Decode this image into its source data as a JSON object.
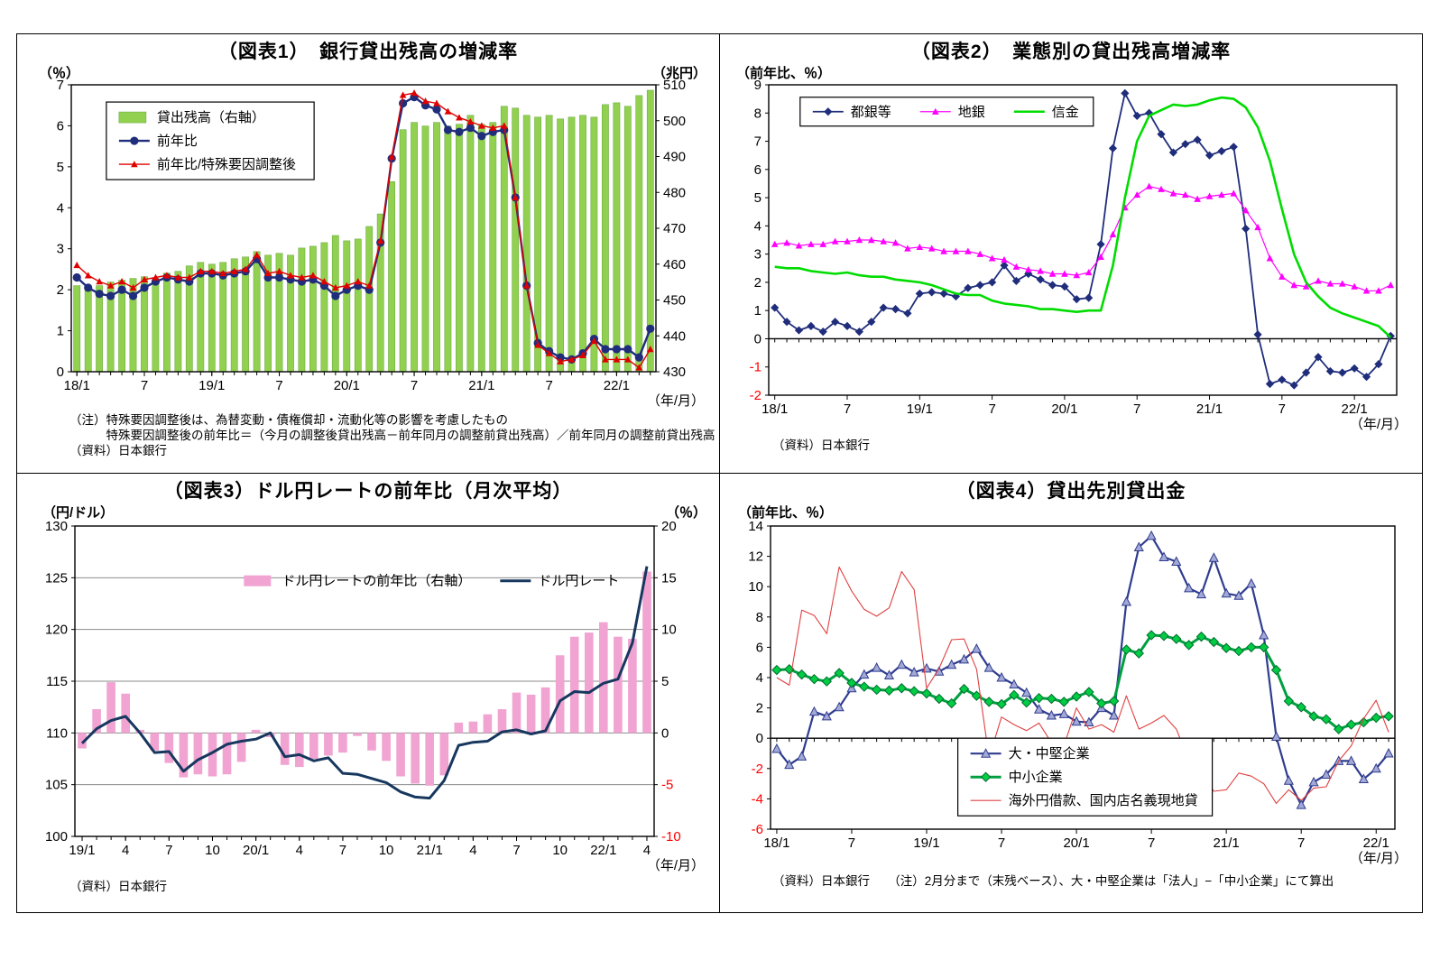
{
  "chart_data": [
    {
      "id": "chart1",
      "type": "bar+line",
      "title": "（図表1）　銀行貸出残高の増減率",
      "left_axis": {
        "label": "（％）",
        "min": 0,
        "max": 7,
        "step": 1
      },
      "right_axis": {
        "label": "（兆円）",
        "min": 430,
        "max": 510,
        "step": 10
      },
      "x_axis": {
        "label": "（年/月）",
        "months": 52,
        "ticks_at_zero": false,
        "tick_positions": [
          0,
          6,
          12,
          18,
          24,
          30,
          36,
          42,
          48
        ],
        "tick_labels": [
          "18/1",
          "7",
          "19/1",
          "7",
          "20/1",
          "7",
          "21/1",
          "7",
          "22/1"
        ]
      },
      "grid_y": false,
      "zero_line": false,
      "legend": {
        "orient": "v",
        "x": 0.06,
        "y": 0.06,
        "box": true,
        "items": [
          {
            "label": "貸出残高（右軸）",
            "series": 0
          },
          {
            "label": "前年比",
            "series": 1
          },
          {
            "label": "前年比/特殊要因調整後",
            "series": 2
          }
        ]
      },
      "series": [
        {
          "name": "貸出残高（右軸）",
          "type": "bar",
          "axis": "right",
          "color": "#92D050",
          "stroke": "#6FAE47",
          "bar_width": 0.58,
          "values": [
            454,
            453.5,
            454,
            455,
            455.5,
            456,
            456.5,
            456,
            457.5,
            458,
            459.5,
            460.5,
            460,
            460.5,
            461.5,
            462,
            463.5,
            462.5,
            463,
            462.5,
            464.5,
            465,
            466,
            468,
            466.5,
            467,
            470.5,
            474,
            483,
            497.5,
            499.5,
            498.5,
            499.5,
            498.5,
            499,
            501.5,
            499,
            499.5,
            504,
            503.5,
            501.5,
            501,
            501.5,
            500.5,
            501,
            501.5,
            501,
            504.5,
            505,
            504,
            507,
            508.5
          ]
        },
        {
          "name": "前年比",
          "type": "line",
          "axis": "left",
          "color": "#1F2D7B",
          "width": 2.4,
          "marker": "circle",
          "marker_size": 4.6,
          "values": [
            2.3,
            2.05,
            1.9,
            1.85,
            2.0,
            1.85,
            2.05,
            2.2,
            2.3,
            2.25,
            2.2,
            2.4,
            2.4,
            2.35,
            2.4,
            2.45,
            2.75,
            2.3,
            2.3,
            2.25,
            2.2,
            2.25,
            2.1,
            1.85,
            2.0,
            2.1,
            2.0,
            3.15,
            5.2,
            6.55,
            6.7,
            6.5,
            6.4,
            5.9,
            5.85,
            5.95,
            5.75,
            5.85,
            5.9,
            4.25,
            2.1,
            0.7,
            0.5,
            0.35,
            0.3,
            0.45,
            0.8,
            0.55,
            0.55,
            0.55,
            0.35,
            1.05
          ]
        },
        {
          "name": "前年比/特殊要因調整後",
          "type": "line",
          "axis": "left",
          "color": "#E00000",
          "width": 1.4,
          "marker": "triangle",
          "marker_size": 4,
          "values": [
            2.6,
            2.35,
            2.2,
            2.1,
            2.2,
            2.05,
            2.25,
            2.3,
            2.35,
            2.3,
            2.3,
            2.45,
            2.45,
            2.4,
            2.45,
            2.5,
            2.85,
            2.4,
            2.45,
            2.35,
            2.3,
            2.35,
            2.2,
            2.05,
            2.1,
            2.2,
            2.1,
            3.2,
            5.25,
            6.75,
            6.8,
            6.6,
            6.55,
            6.35,
            6.2,
            6.1,
            6.0,
            5.95,
            6.0,
            4.25,
            2.1,
            0.65,
            0.45,
            0.25,
            0.3,
            0.4,
            0.75,
            0.3,
            0.3,
            0.3,
            0.1,
            0.55
          ]
        }
      ],
      "notes": [
        "（注）特殊要因調整後は、為替変動・債権償却・流動化等の影響を考慮したもの",
        "　　　特殊要因調整後の前年比＝（今月の調整後貸出残高－前年同月の調整前貸出残高）／前年同月の調整前貸出残高",
        "（資料）日本銀行"
      ]
    },
    {
      "id": "chart2",
      "type": "line",
      "title": "（図表2）　業態別の貸出残高増減率",
      "left_axis": {
        "label": "（前年比、％）",
        "min": -2,
        "max": 9,
        "step": 1
      },
      "right_axis": null,
      "x_axis": {
        "label": "（年/月）",
        "months": 52,
        "ticks_at_zero": true,
        "tick_positions": [
          0,
          6,
          12,
          18,
          24,
          30,
          36,
          42,
          48
        ],
        "tick_labels": [
          "18/1",
          "7",
          "19/1",
          "7",
          "20/1",
          "7",
          "21/1",
          "7",
          "22/1"
        ]
      },
      "grid_y": false,
      "zero_line": true,
      "legend": {
        "orient": "h",
        "x": 0.05,
        "y": 0.04,
        "box": true,
        "gap": 30,
        "items": [
          {
            "label": "都銀等",
            "series": 0
          },
          {
            "label": "地銀",
            "series": 1
          },
          {
            "label": "信金",
            "series": 2
          }
        ]
      },
      "series": [
        {
          "name": "都銀等",
          "type": "line",
          "axis": "left",
          "color": "#1F2D7B",
          "width": 1.8,
          "marker": "diamond",
          "marker_size": 4.6,
          "values": [
            1.1,
            0.6,
            0.3,
            0.45,
            0.25,
            0.6,
            0.45,
            0.25,
            0.6,
            1.1,
            1.05,
            0.9,
            1.6,
            1.65,
            1.6,
            1.5,
            1.8,
            1.9,
            2.0,
            2.6,
            2.05,
            2.3,
            2.1,
            1.9,
            1.85,
            1.4,
            1.45,
            3.35,
            6.75,
            8.7,
            7.9,
            8.0,
            7.25,
            6.6,
            6.9,
            7.05,
            6.5,
            6.65,
            6.8,
            3.9,
            0.15,
            -1.6,
            -1.45,
            -1.65,
            -1.2,
            -0.65,
            -1.15,
            -1.2,
            -1.05,
            -1.35,
            -0.9,
            0.1
          ]
        },
        {
          "name": "地銀",
          "type": "line",
          "axis": "left",
          "color": "#FF00FF",
          "width": 1.2,
          "marker": "triangle",
          "marker_size": 4,
          "values": [
            3.35,
            3.4,
            3.3,
            3.35,
            3.35,
            3.45,
            3.45,
            3.5,
            3.5,
            3.45,
            3.4,
            3.2,
            3.25,
            3.2,
            3.1,
            3.1,
            3.1,
            3.0,
            2.85,
            2.8,
            2.55,
            2.45,
            2.4,
            2.3,
            2.3,
            2.25,
            2.35,
            2.9,
            3.7,
            4.65,
            5.1,
            5.4,
            5.3,
            5.15,
            5.1,
            4.95,
            5.05,
            5.1,
            5.15,
            4.55,
            3.95,
            2.85,
            2.2,
            1.9,
            1.85,
            2.05,
            1.95,
            1.95,
            1.85,
            1.7,
            1.7,
            1.9
          ]
        },
        {
          "name": "信金",
          "type": "line",
          "axis": "left",
          "color": "#00DC00",
          "width": 2.6,
          "values": [
            2.55,
            2.5,
            2.5,
            2.4,
            2.35,
            2.3,
            2.35,
            2.25,
            2.2,
            2.2,
            2.1,
            2.05,
            2.0,
            1.9,
            1.75,
            1.6,
            1.55,
            1.55,
            1.35,
            1.25,
            1.2,
            1.15,
            1.05,
            1.05,
            1.0,
            0.95,
            1.0,
            1.0,
            2.6,
            5.0,
            7.0,
            7.9,
            8.1,
            8.3,
            8.25,
            8.3,
            8.45,
            8.55,
            8.5,
            8.2,
            7.5,
            6.3,
            4.6,
            3.0,
            2.0,
            1.5,
            1.1,
            0.9,
            0.75,
            0.6,
            0.45,
            0.05
          ]
        }
      ],
      "notes": [
        "（資料）日本銀行"
      ]
    },
    {
      "id": "chart3",
      "type": "bar+line",
      "title": "（図表3）ドル円レートの前年比（月次平均）",
      "left_axis": {
        "label": "（円/ドル）",
        "min": 100,
        "max": 130,
        "step": 5
      },
      "right_axis": {
        "label": "（％）",
        "min": -10,
        "max": 20,
        "step": 5
      },
      "x_axis": {
        "label": "（年/月）",
        "months": 40,
        "ticks_at_zero": false,
        "tick_positions": [
          0,
          3,
          6,
          9,
          12,
          15,
          18,
          21,
          24,
          27,
          30,
          33,
          36,
          39
        ],
        "tick_labels": [
          "19/1",
          "4",
          "7",
          "10",
          "20/1",
          "4",
          "7",
          "10",
          "21/1",
          "4",
          "7",
          "10",
          "22/1",
          "4"
        ]
      },
      "grid_y": true,
      "zero_line": false,
      "legend": {
        "orient": "h",
        "x": 0.27,
        "y": 0.13,
        "box": false,
        "gap": 30,
        "items": [
          {
            "label": "ドル円レートの前年比（右軸）",
            "series": 0
          },
          {
            "label": "ドル円レート",
            "series": 1
          }
        ]
      },
      "series": [
        {
          "name": "ドル円レートの前年比（右軸）",
          "type": "bar",
          "axis": "right",
          "base": 0,
          "color": "#F1A3D2",
          "bar_width": 0.6,
          "values": [
            -1.5,
            2.3,
            4.9,
            3.8,
            0.3,
            -1.7,
            -2.9,
            -4.3,
            -4.0,
            -4.2,
            -4.0,
            -2.8,
            0.3,
            -0.4,
            -3.1,
            -3.3,
            -2.5,
            -2.2,
            -1.9,
            -0.3,
            -1.7,
            -2.7,
            -4.2,
            -4.9,
            -5.1,
            -4.1,
            1.0,
            1.1,
            1.8,
            2.3,
            3.9,
            3.7,
            4.4,
            7.5,
            9.3,
            9.7,
            10.7,
            9.3,
            9.1,
            15.6
          ]
        },
        {
          "name": "ドル円レート",
          "type": "line",
          "axis": "left",
          "color": "#17375E",
          "width": 3,
          "values": [
            109.0,
            110.4,
            111.2,
            111.6,
            110.0,
            108.1,
            108.2,
            106.3,
            107.4,
            108.1,
            108.9,
            109.2,
            109.4,
            110.0,
            107.7,
            107.9,
            107.3,
            107.6,
            106.1,
            106.0,
            105.6,
            105.2,
            104.3,
            103.8,
            103.7,
            105.4,
            108.8,
            109.1,
            109.2,
            110.1,
            110.3,
            109.9,
            110.2,
            113.1,
            114.0,
            113.9,
            114.8,
            115.2,
            118.7,
            126.1
          ]
        }
      ],
      "notes": [
        "（資料）日本銀行"
      ]
    },
    {
      "id": "chart4",
      "type": "line",
      "title": "（図表4）貸出先別貸出金",
      "left_axis": {
        "label": "（前年比、％）",
        "min": -6,
        "max": 14,
        "step": 2
      },
      "right_axis": null,
      "x_axis": {
        "label": "（年/月）",
        "months": 50,
        "ticks_at_zero": true,
        "tick_positions": [
          0,
          6,
          12,
          18,
          24,
          30,
          36,
          42,
          48
        ],
        "tick_labels": [
          "18/1",
          "7",
          "19/1",
          "7",
          "20/1",
          "7",
          "21/1",
          "7",
          "22/1"
        ]
      },
      "grid_y": false,
      "zero_line": true,
      "legend": {
        "orient": "v",
        "x": 0.3,
        "y": 0.7,
        "box": true,
        "items": [
          {
            "label": "大・中堅企業",
            "series": 0
          },
          {
            "label": "中小企業",
            "series": 1
          },
          {
            "label": "海外円借款、国内店名義現地貸",
            "series": 2
          }
        ]
      },
      "series": [
        {
          "name": "大・中堅企業",
          "type": "line",
          "axis": "left",
          "color": "#2F3C8E",
          "width": 2.2,
          "marker": "triangle",
          "marker_size": 5,
          "marker_fill": "#A3A9D6",
          "marker_stroke": "#2F3C8E",
          "values": [
            -0.7,
            -1.75,
            -1.2,
            1.75,
            1.45,
            2.05,
            3.3,
            4.2,
            4.65,
            4.15,
            4.85,
            4.35,
            4.6,
            4.4,
            4.85,
            5.2,
            5.9,
            4.65,
            4.0,
            3.55,
            3.0,
            1.9,
            1.5,
            1.6,
            1.1,
            1.05,
            2.0,
            1.5,
            9.0,
            12.6,
            13.35,
            11.95,
            11.65,
            9.9,
            9.5,
            11.9,
            9.55,
            9.4,
            10.2,
            6.8,
            0.1,
            -2.8,
            -4.4,
            -2.9,
            -2.4,
            -1.5,
            -1.5,
            -2.7,
            -2.0,
            -1.0
          ]
        },
        {
          "name": "中小企業",
          "type": "line",
          "axis": "left",
          "color": "#00A040",
          "width": 3,
          "marker": "diamond",
          "marker_size": 5,
          "marker_fill": "#00CC44",
          "marker_stroke": "#006B2D",
          "values": [
            4.5,
            4.55,
            4.2,
            3.9,
            3.75,
            4.3,
            3.65,
            3.4,
            3.2,
            3.15,
            3.3,
            3.1,
            2.95,
            2.6,
            2.3,
            3.25,
            2.8,
            2.4,
            2.25,
            2.85,
            2.35,
            2.65,
            2.6,
            2.4,
            2.75,
            3.05,
            2.3,
            2.45,
            5.85,
            5.6,
            6.8,
            6.75,
            6.55,
            6.15,
            6.7,
            6.35,
            5.95,
            5.75,
            6.0,
            6.0,
            4.5,
            2.45,
            2.05,
            1.45,
            1.25,
            0.6,
            0.9,
            1.05,
            1.35,
            1.45
          ]
        },
        {
          "name": "海外円借款、国内店名義現地貸",
          "type": "line",
          "axis": "left",
          "color": "#E04040",
          "width": 1.1,
          "values": [
            4.0,
            3.5,
            8.45,
            8.1,
            6.9,
            11.3,
            9.7,
            8.5,
            8.05,
            8.6,
            11.0,
            9.8,
            3.3,
            4.6,
            6.5,
            6.55,
            4.55,
            -1.3,
            1.4,
            0.9,
            0.5,
            1.0,
            -0.3,
            -0.5,
            2.0,
            0.6,
            0.9,
            0.4,
            2.8,
            0.6,
            1.0,
            1.5,
            0.6,
            -1.5,
            -2.3,
            -3.5,
            -3.4,
            -2.3,
            -2.5,
            -3.0,
            -4.3,
            -3.4,
            -4.1,
            -3.3,
            -3.2,
            -1.5,
            -0.5,
            1.3,
            2.5,
            0.4
          ]
        }
      ],
      "notes": [
        "（資料）日本銀行　　（注）2月分まで（末残ベース）、大・中堅企業は「法人」−「中小企業」にて算出"
      ]
    }
  ]
}
